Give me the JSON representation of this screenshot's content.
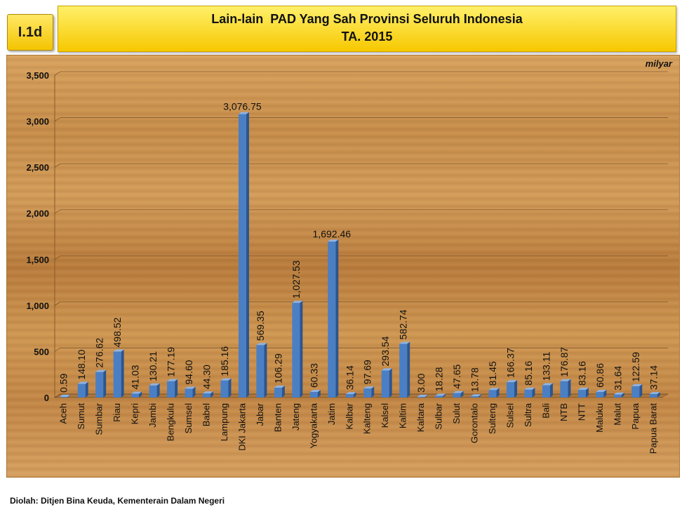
{
  "header": {
    "badge": "I.1d",
    "title_line1": "Lain-lain  PAD Yang Sah Provinsi Seluruh Indonesia",
    "title_line2": "TA. 2015"
  },
  "unit": "milyar",
  "footer": "Diolah: Ditjen Bina Keuda, Kementerain Dalam Negeri",
  "colors": {
    "bar": "#4a7fc4",
    "bar_side": "#2b558f",
    "bar_top": "#8fb3e3"
  },
  "chart_data": {
    "type": "bar",
    "title": "Lain-lain  PAD Yang Sah Provinsi Seluruh Indonesia TA. 2015",
    "ylabel": "milyar",
    "ylim": [
      0,
      3500
    ],
    "yticks": [
      "0",
      "500",
      "1,000",
      "1,500",
      "2,000",
      "2,500",
      "3,000",
      "3,500"
    ],
    "grid": true,
    "categories": [
      "Aceh",
      "Sumut",
      "Sumbar",
      "Riau",
      "Kepri",
      "Jambi",
      "Bengkulu",
      "Sumsel",
      "Babel",
      "Lampung",
      "DKI Jakarta",
      "Jabar",
      "Banten",
      "Jateng",
      "Yogyakarta",
      "Jatim",
      "Kalbar",
      "Kalteng",
      "Kalsel",
      "Kaltim",
      "Kaltara",
      "Sulbar",
      "Sulut",
      "Gorontalo",
      "Sulteng",
      "Sulsel",
      "Sultra",
      "Bali",
      "NTB",
      "NTT",
      "Maluku",
      "Malut",
      "Papua",
      "Papua Barat"
    ],
    "values": [
      0.59,
      148.1,
      276.62,
      498.52,
      41.03,
      130.21,
      177.19,
      94.6,
      44.3,
      185.16,
      3076.75,
      569.35,
      106.29,
      1027.53,
      60.33,
      1692.46,
      36.14,
      97.69,
      293.54,
      582.74,
      3.0,
      18.28,
      47.65,
      13.78,
      81.45,
      166.37,
      85.16,
      133.11,
      176.87,
      83.16,
      60.86,
      31.64,
      122.59,
      37.14
    ],
    "labels": [
      "0.59",
      "148.10",
      "276.62",
      "498.52",
      "41.03",
      "130.21",
      "177.19",
      "94.60",
      "44.30",
      "185.16",
      "3,076.75",
      "569.35",
      "106.29",
      "1,027.53",
      "60.33",
      "1,692.46",
      "36.14",
      "97.69",
      "293.54",
      "582.74",
      "3.00",
      "18.28",
      "47.65",
      "13.78",
      "81.45",
      "166.37",
      "85.16",
      "133.11",
      "176.87",
      "83.16",
      "60.86",
      "31.64",
      "122.59",
      "37.14"
    ]
  }
}
